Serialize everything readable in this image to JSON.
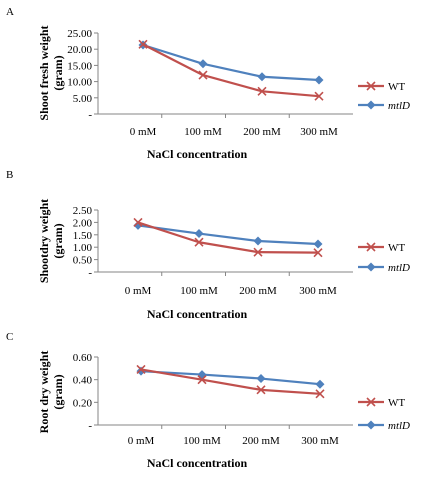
{
  "colors": {
    "wt": "#c0504d",
    "mtld": "#4f81bd",
    "axis": "#868686"
  },
  "icons": {
    "wt_marker": "x-marker-icon",
    "mtld_marker": "diamond-marker-icon"
  },
  "chart_data": [
    {
      "type": "line",
      "panel_label": "A",
      "categories": [
        "0 mM",
        "100 mM",
        "200 mM",
        "300 mM"
      ],
      "xlabel": "NaCl concentration",
      "ylabel": [
        "Shoot fresh weight",
        "(gram)"
      ],
      "ylim": [
        0,
        25
      ],
      "yticks": [
        "-",
        "5.00",
        "10.00",
        "15.00",
        "20.00",
        "25.00"
      ],
      "legend_position": "right",
      "series": [
        {
          "name": "WT",
          "italic": false,
          "marker": "x",
          "values": [
            21.5,
            12.0,
            7.0,
            5.5
          ]
        },
        {
          "name": "mtlD",
          "italic": true,
          "marker": "diamond",
          "values": [
            21.3,
            15.5,
            11.5,
            10.5
          ]
        }
      ]
    },
    {
      "type": "line",
      "panel_label": "B",
      "categories": [
        "0 mM",
        "100 mM",
        "200 mM",
        "300 mM"
      ],
      "xlabel": "NaCl concentration",
      "ylabel": [
        "Shootdry weight",
        "(gram)"
      ],
      "ylim": [
        0,
        2.5
      ],
      "yticks": [
        "-",
        "0.50",
        "1.00",
        "1.50",
        "2.00",
        "2.50"
      ],
      "legend_position": "right",
      "series": [
        {
          "name": "WT",
          "italic": false,
          "marker": "x",
          "values": [
            2.0,
            1.2,
            0.8,
            0.78
          ]
        },
        {
          "name": "mtlD",
          "italic": true,
          "marker": "diamond",
          "values": [
            1.88,
            1.55,
            1.25,
            1.13
          ]
        }
      ]
    },
    {
      "type": "line",
      "panel_label": "C",
      "categories": [
        "0 mM",
        "100 mM",
        "200 mM",
        "300 mM"
      ],
      "xlabel": "NaCl concentration",
      "ylabel": [
        "Root dry weight",
        "(gram)"
      ],
      "ylim": [
        0,
        0.6
      ],
      "yticks": [
        "-",
        "0.20",
        "0.40",
        "0.60"
      ],
      "legend_position": "right",
      "series": [
        {
          "name": "WT",
          "italic": false,
          "marker": "x",
          "values": [
            0.49,
            0.4,
            0.31,
            0.275
          ]
        },
        {
          "name": "mtlD",
          "italic": true,
          "marker": "diamond",
          "values": [
            0.475,
            0.445,
            0.41,
            0.36
          ]
        }
      ]
    }
  ]
}
